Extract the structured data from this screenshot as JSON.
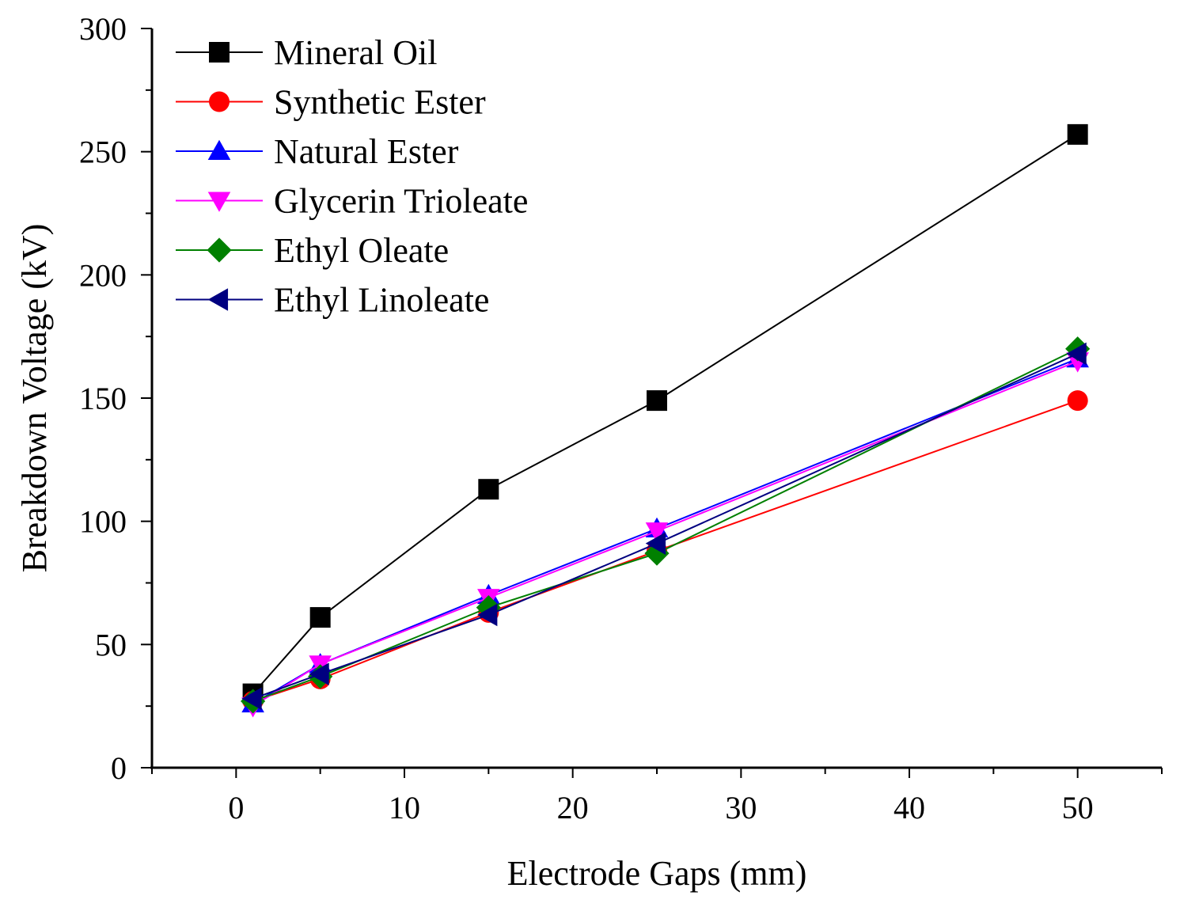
{
  "chart_data": {
    "type": "line",
    "title": "",
    "xlabel": "Electrode Gaps (mm)",
    "ylabel": "Breakdown Voltage (kV)",
    "xlim": [
      -5,
      55
    ],
    "ylim": [
      0,
      300
    ],
    "xticks": [
      0,
      10,
      20,
      30,
      40,
      50
    ],
    "yticks": [
      0,
      50,
      100,
      150,
      200,
      250,
      300
    ],
    "xtick_labels": [
      "0",
      "10",
      "20",
      "30",
      "40",
      "50"
    ],
    "ytick_labels": [
      "0",
      "50",
      "100",
      "150",
      "200",
      "250",
      "300"
    ],
    "grid": false,
    "legend_position": "top-left",
    "x": [
      1,
      5,
      15,
      25,
      50
    ],
    "series": [
      {
        "name": "Mineral Oil",
        "color": "#000000",
        "marker": "square",
        "values": [
          30,
          61,
          113,
          149,
          257
        ]
      },
      {
        "name": "Synthetic Ester",
        "color": "#ff0000",
        "marker": "circle",
        "values": [
          27,
          36,
          63,
          88,
          149
        ]
      },
      {
        "name": "Natural Ester",
        "color": "#0000ff",
        "marker": "triangle-up",
        "values": [
          26,
          42,
          70,
          97,
          166
        ]
      },
      {
        "name": "Glycerin Trioleate",
        "color": "#ff00ff",
        "marker": "triangle-down",
        "values": [
          25,
          42,
          69,
          96,
          165
        ]
      },
      {
        "name": "Ethyl Oleate",
        "color": "#008000",
        "marker": "diamond",
        "values": [
          27,
          37,
          65,
          87,
          170
        ]
      },
      {
        "name": "Ethyl Linoleate",
        "color": "#000080",
        "marker": "triangle-left",
        "values": [
          28,
          38,
          62,
          91,
          168
        ]
      }
    ]
  }
}
